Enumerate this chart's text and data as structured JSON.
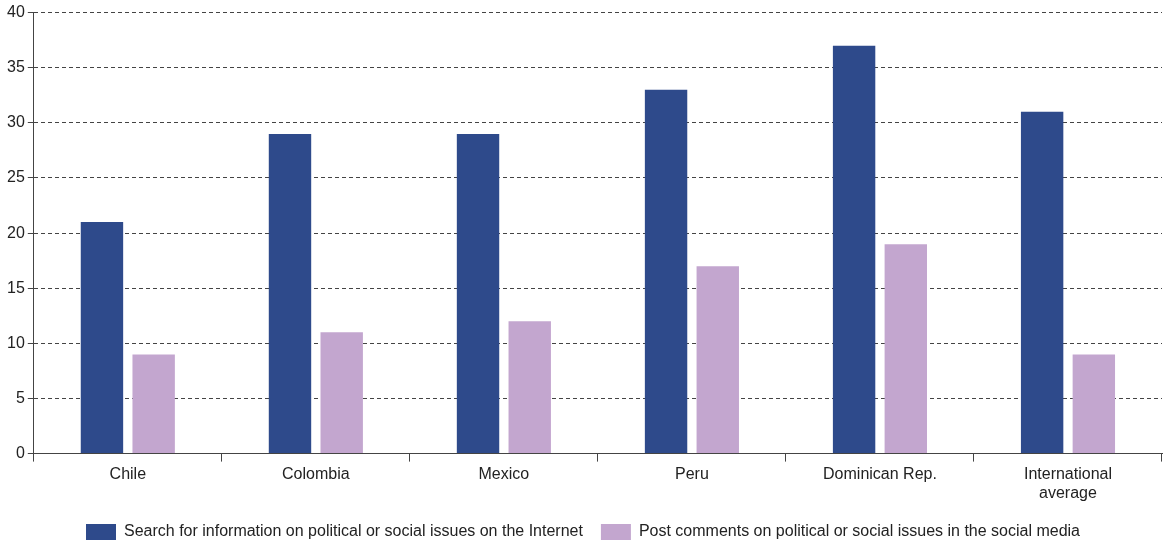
{
  "chart_data": {
    "type": "bar",
    "categories": [
      "Chile",
      "Colombia",
      "Mexico",
      "Peru",
      "Dominican Rep.",
      "International average"
    ],
    "series": [
      {
        "name": "Search for information on political or social issues on the Internet",
        "color": "#2e4a8b",
        "values": [
          21,
          29,
          29,
          33,
          37,
          31
        ]
      },
      {
        "name": "Post comments on political or social issues in the social media",
        "color": "#c3a6cf",
        "values": [
          9,
          11,
          12,
          17,
          19,
          9
        ]
      }
    ],
    "ylim": [
      0,
      40
    ],
    "yticks": [
      0,
      5,
      10,
      15,
      20,
      25,
      30,
      35,
      40
    ],
    "grid": "y",
    "legend": "bottom"
  }
}
